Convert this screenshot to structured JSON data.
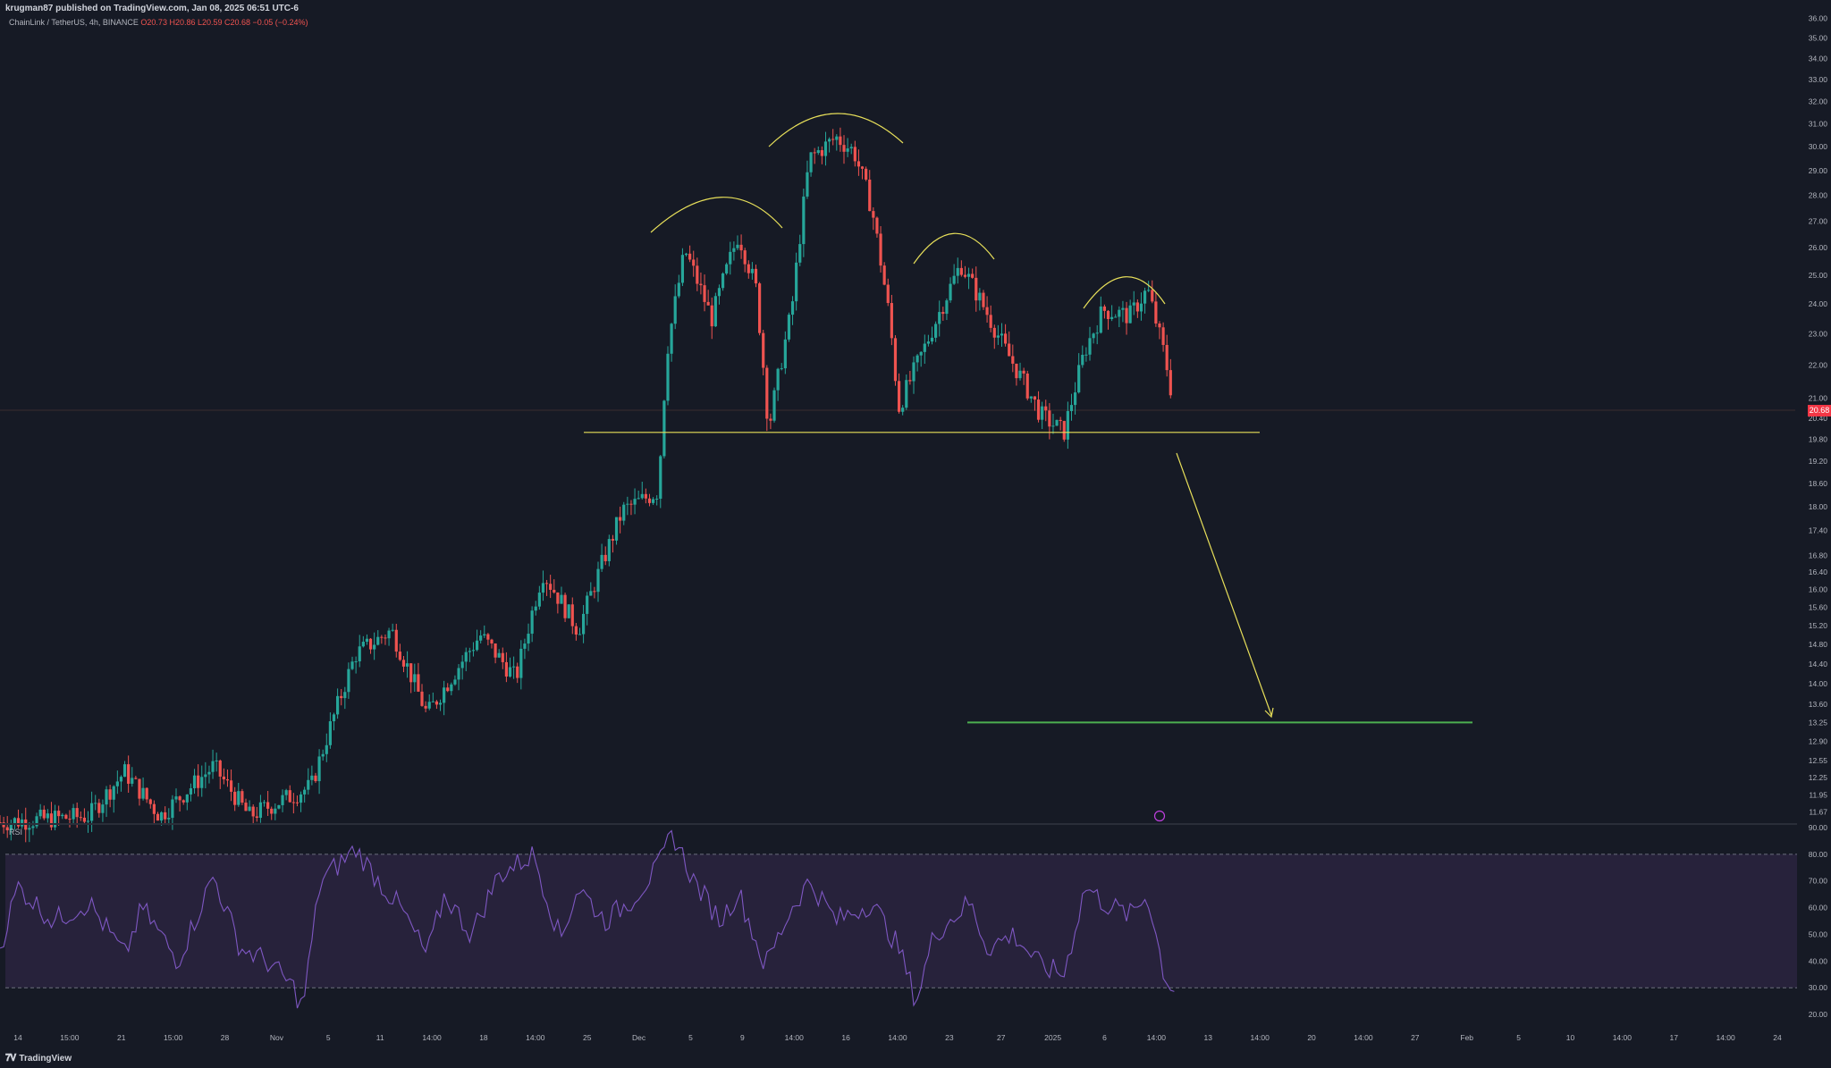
{
  "header": {
    "published": "krugman87 published on TradingView.com, Jan 08, 2025 06:51 UTC-6",
    "symbol": "ChainLink / TetherUS, 4h, BINANCE",
    "ohlc": "O20.73 H20.86 L20.59 C20.68 −0.05 (−0.24%)"
  },
  "indicator_label": "RSI",
  "footer": {
    "logo_text": "TradingView",
    "icon": "tradingview-logo-icon"
  },
  "last_price": "20.68",
  "colors": {
    "background": "#161a25",
    "up": "#26a69a",
    "down": "#ef5350",
    "pattern_arcs": "#e8e05a",
    "neckline": "#e8e05a",
    "target_line": "#4caf50",
    "rsi_line": "#7e57c2",
    "rsi_band": "#2a2440"
  },
  "chart_data": [
    {
      "type": "line",
      "subtype": "candlestick",
      "title": "ChainLink / TetherUS, 4h, BINANCE",
      "y_scale": "log",
      "ylim": [
        11.5,
        36.3
      ],
      "y_ticks": [
        "36.00",
        "35.00",
        "34.00",
        "33.00",
        "32.00",
        "31.00",
        "30.00",
        "29.00",
        "28.00",
        "27.00",
        "26.00",
        "25.00",
        "24.00",
        "23.00",
        "22.00",
        "21.00",
        "20.40",
        "19.80",
        "19.20",
        "18.60",
        "18.00",
        "17.40",
        "16.80",
        "16.40",
        "16.00",
        "15.60",
        "15.20",
        "14.80",
        "14.40",
        "14.00",
        "13.60",
        "13.25",
        "12.90",
        "12.55",
        "12.25",
        "11.95",
        "11.67"
      ],
      "x_ticks": [
        "14",
        "15:00",
        "21",
        "15:00",
        "28",
        "Nov",
        "5",
        "11",
        "14:00",
        "18",
        "14:00",
        "25",
        "Dec",
        "5",
        "9",
        "14:00",
        "16",
        "14:00",
        "23",
        "27",
        "2025",
        "6",
        "14:00",
        "13",
        "14:00",
        "20",
        "14:00",
        "27",
        "Feb",
        "5",
        "10",
        "14:00",
        "17",
        "14:00",
        "24"
      ],
      "price_path": [
        [
          0.0,
          11.5
        ],
        [
          0.05,
          11.6
        ],
        [
          0.07,
          12.35
        ],
        [
          0.09,
          11.6
        ],
        [
          0.12,
          12.45
        ],
        [
          0.14,
          11.6
        ],
        [
          0.175,
          12.1
        ],
        [
          0.2,
          14.6
        ],
        [
          0.22,
          15.1
        ],
        [
          0.24,
          13.4
        ],
        [
          0.255,
          14.2
        ],
        [
          0.27,
          15.0
        ],
        [
          0.29,
          14.1
        ],
        [
          0.305,
          16.4
        ],
        [
          0.325,
          15.1
        ],
        [
          0.35,
          17.9
        ],
        [
          0.37,
          18.4
        ],
        [
          0.375,
          22.5
        ],
        [
          0.385,
          25.9
        ],
        [
          0.4,
          23.5
        ],
        [
          0.415,
          26.5
        ],
        [
          0.425,
          24.5
        ],
        [
          0.432,
          20.1
        ],
        [
          0.445,
          23.8
        ],
        [
          0.455,
          29.5
        ],
        [
          0.47,
          30.4
        ],
        [
          0.48,
          29.8
        ],
        [
          0.49,
          27.5
        ],
        [
          0.5,
          23.5
        ],
        [
          0.505,
          20.7
        ],
        [
          0.52,
          22.6
        ],
        [
          0.54,
          25.4
        ],
        [
          0.565,
          22.5
        ],
        [
          0.585,
          20.5
        ],
        [
          0.598,
          20.0
        ],
        [
          0.61,
          22.5
        ],
        [
          0.62,
          23.8
        ],
        [
          0.635,
          23.6
        ],
        [
          0.645,
          24.5
        ],
        [
          0.655,
          22.2
        ],
        [
          0.66,
          20.68
        ]
      ],
      "annotations": {
        "neckline": 20.0,
        "target_price": 13.25,
        "pattern": "head and shoulders (four arcs)",
        "projection_arrow": "down from neckline to target line"
      },
      "last_price": 20.68,
      "grid": false
    },
    {
      "type": "line",
      "title": "RSI",
      "ylim": [
        15,
        90
      ],
      "y_ticks": [
        "90.00",
        "80.00",
        "70.00",
        "60.00",
        "50.00",
        "40.00",
        "30.00",
        "20.00"
      ],
      "bands": [
        30,
        80
      ],
      "rsi_path": [
        [
          0.0,
          45
        ],
        [
          0.01,
          68
        ],
        [
          0.03,
          55
        ],
        [
          0.05,
          62
        ],
        [
          0.07,
          42
        ],
        [
          0.08,
          60
        ],
        [
          0.1,
          40
        ],
        [
          0.12,
          72
        ],
        [
          0.135,
          45
        ],
        [
          0.15,
          40
        ],
        [
          0.165,
          30
        ],
        [
          0.17,
          22
        ],
        [
          0.18,
          70
        ],
        [
          0.2,
          82
        ],
        [
          0.215,
          68
        ],
        [
          0.225,
          60
        ],
        [
          0.24,
          42
        ],
        [
          0.25,
          65
        ],
        [
          0.265,
          50
        ],
        [
          0.28,
          72
        ],
        [
          0.3,
          80
        ],
        [
          0.315,
          48
        ],
        [
          0.325,
          68
        ],
        [
          0.34,
          55
        ],
        [
          0.355,
          63
        ],
        [
          0.37,
          75
        ],
        [
          0.378,
          88
        ],
        [
          0.39,
          70
        ],
        [
          0.405,
          55
        ],
        [
          0.415,
          66
        ],
        [
          0.43,
          38
        ],
        [
          0.445,
          60
        ],
        [
          0.455,
          70
        ],
        [
          0.47,
          55
        ],
        [
          0.49,
          62
        ],
        [
          0.505,
          45
        ],
        [
          0.515,
          25
        ],
        [
          0.525,
          50
        ],
        [
          0.545,
          62
        ],
        [
          0.555,
          45
        ],
        [
          0.57,
          50
        ],
        [
          0.585,
          38
        ],
        [
          0.598,
          35
        ],
        [
          0.61,
          68
        ],
        [
          0.62,
          62
        ],
        [
          0.635,
          57
        ],
        [
          0.645,
          65
        ],
        [
          0.655,
          33
        ],
        [
          0.66,
          30
        ]
      ]
    }
  ]
}
